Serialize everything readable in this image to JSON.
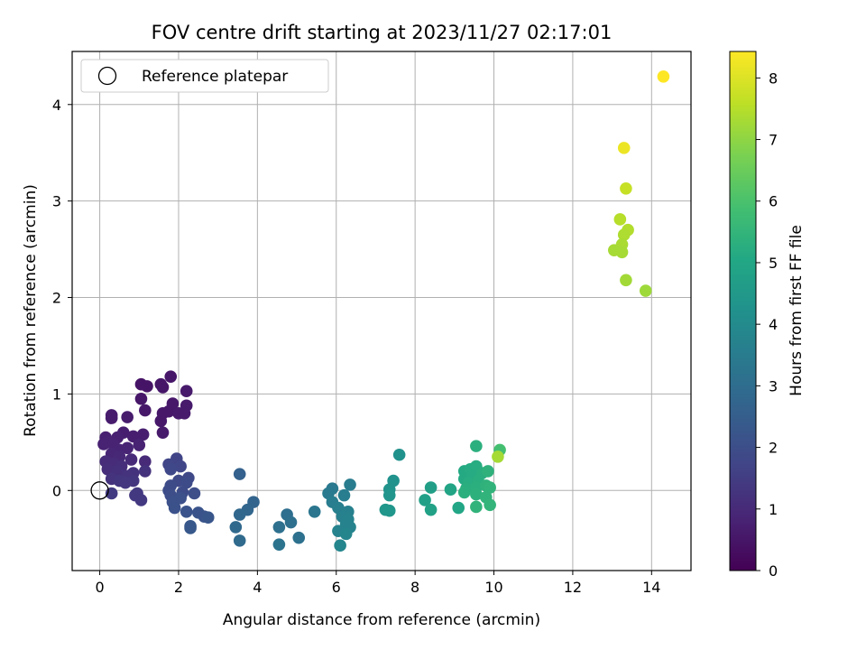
{
  "chart_data": {
    "type": "scatter",
    "title": "FOV centre drift starting at 2023/11/27 02:17:01",
    "xlabel": "Angular distance from reference (arcmin)",
    "ylabel": "Rotation from reference (arcmin)",
    "xlim": [
      -0.7,
      15.0
    ],
    "ylim": [
      -0.83,
      4.55
    ],
    "xticks": [
      0,
      2,
      4,
      6,
      8,
      10,
      12,
      14
    ],
    "yticks": [
      0,
      1,
      2,
      3,
      4
    ],
    "grid": true,
    "legend": {
      "placement": "top-left",
      "entries": [
        "Reference platepar"
      ]
    },
    "reference_point": {
      "x": 0,
      "y": 0,
      "marker": "open-circle"
    },
    "colorbar": {
      "label": "Hours from first FF file",
      "min": 0,
      "max": 8.43,
      "ticks": [
        0,
        1,
        2,
        3,
        4,
        5,
        6,
        7,
        8
      ],
      "colormap": "viridis"
    },
    "points": [
      {
        "x": 1.8,
        "y": 1.18,
        "c": 0.5
      },
      {
        "x": 1.05,
        "y": 1.1,
        "c": 0.45
      },
      {
        "x": 1.2,
        "y": 1.08,
        "c": 0.45
      },
      {
        "x": 1.55,
        "y": 1.1,
        "c": 0.5
      },
      {
        "x": 1.6,
        "y": 1.07,
        "c": 0.5
      },
      {
        "x": 2.2,
        "y": 1.03,
        "c": 0.6
      },
      {
        "x": 1.05,
        "y": 0.95,
        "c": 0.5
      },
      {
        "x": 1.85,
        "y": 0.9,
        "c": 0.55
      },
      {
        "x": 2.2,
        "y": 0.88,
        "c": 0.6
      },
      {
        "x": 1.15,
        "y": 0.83,
        "c": 0.55
      },
      {
        "x": 1.6,
        "y": 0.8,
        "c": 0.55
      },
      {
        "x": 1.75,
        "y": 0.82,
        "c": 0.55
      },
      {
        "x": 2.0,
        "y": 0.8,
        "c": 0.6
      },
      {
        "x": 2.15,
        "y": 0.8,
        "c": 0.6
      },
      {
        "x": 1.55,
        "y": 0.72,
        "c": 0.55
      },
      {
        "x": 0.3,
        "y": 0.78,
        "c": 0.65
      },
      {
        "x": 0.3,
        "y": 0.75,
        "c": 0.65
      },
      {
        "x": 0.7,
        "y": 0.76,
        "c": 0.65
      },
      {
        "x": 1.6,
        "y": 0.6,
        "c": 0.6
      },
      {
        "x": 0.6,
        "y": 0.6,
        "c": 0.7
      },
      {
        "x": 1.1,
        "y": 0.58,
        "c": 0.7
      },
      {
        "x": 0.85,
        "y": 0.56,
        "c": 0.7
      },
      {
        "x": 0.15,
        "y": 0.55,
        "c": 0.75
      },
      {
        "x": 0.45,
        "y": 0.55,
        "c": 0.75
      },
      {
        "x": 0.2,
        "y": 0.5,
        "c": 0.8
      },
      {
        "x": 0.1,
        "y": 0.48,
        "c": 0.8
      },
      {
        "x": 0.35,
        "y": 0.48,
        "c": 0.8
      },
      {
        "x": 1.0,
        "y": 0.47,
        "c": 0.8
      },
      {
        "x": 0.7,
        "y": 0.44,
        "c": 0.85
      },
      {
        "x": 0.5,
        "y": 0.42,
        "c": 0.85
      },
      {
        "x": 0.3,
        "y": 0.38,
        "c": 0.9
      },
      {
        "x": 0.5,
        "y": 0.35,
        "c": 0.95
      },
      {
        "x": 0.8,
        "y": 0.32,
        "c": 1.0
      },
      {
        "x": 1.15,
        "y": 0.3,
        "c": 1.0
      },
      {
        "x": 0.15,
        "y": 0.3,
        "c": 1.05
      },
      {
        "x": 0.35,
        "y": 0.28,
        "c": 1.05
      },
      {
        "x": 0.55,
        "y": 0.25,
        "c": 1.1
      },
      {
        "x": 0.2,
        "y": 0.22,
        "c": 1.1
      },
      {
        "x": 0.45,
        "y": 0.2,
        "c": 1.15
      },
      {
        "x": 0.85,
        "y": 0.18,
        "c": 1.2
      },
      {
        "x": 1.15,
        "y": 0.2,
        "c": 1.2
      },
      {
        "x": 0.7,
        "y": 0.15,
        "c": 1.25
      },
      {
        "x": 0.3,
        "y": 0.12,
        "c": 1.25
      },
      {
        "x": 0.5,
        "y": 0.1,
        "c": 1.3
      },
      {
        "x": 0.85,
        "y": 0.1,
        "c": 1.3
      },
      {
        "x": 0.65,
        "y": 0.08,
        "c": 1.35
      },
      {
        "x": 0.9,
        "y": -0.05,
        "c": 1.4
      },
      {
        "x": 0.95,
        "y": -0.03,
        "c": 1.4
      },
      {
        "x": 1.05,
        "y": -0.1,
        "c": 1.4
      },
      {
        "x": 0.3,
        "y": -0.03,
        "c": 1.45
      },
      {
        "x": 1.95,
        "y": 0.33,
        "c": 1.7
      },
      {
        "x": 1.75,
        "y": 0.27,
        "c": 1.75
      },
      {
        "x": 2.05,
        "y": 0.25,
        "c": 1.75
      },
      {
        "x": 1.8,
        "y": 0.22,
        "c": 1.8
      },
      {
        "x": 2.25,
        "y": 0.13,
        "c": 1.85
      },
      {
        "x": 2.0,
        "y": 0.1,
        "c": 1.85
      },
      {
        "x": 2.2,
        "y": 0.08,
        "c": 1.9
      },
      {
        "x": 1.8,
        "y": 0.05,
        "c": 1.9
      },
      {
        "x": 1.75,
        "y": 0.0,
        "c": 1.95
      },
      {
        "x": 2.1,
        "y": -0.02,
        "c": 1.95
      },
      {
        "x": 2.4,
        "y": -0.03,
        "c": 2.0
      },
      {
        "x": 1.8,
        "y": -0.05,
        "c": 2.0
      },
      {
        "x": 2.05,
        "y": -0.08,
        "c": 2.05
      },
      {
        "x": 1.85,
        "y": -0.12,
        "c": 2.05
      },
      {
        "x": 1.9,
        "y": -0.18,
        "c": 2.1
      },
      {
        "x": 2.2,
        "y": -0.22,
        "c": 2.15
      },
      {
        "x": 2.5,
        "y": -0.23,
        "c": 2.2
      },
      {
        "x": 2.65,
        "y": -0.27,
        "c": 2.2
      },
      {
        "x": 2.75,
        "y": -0.28,
        "c": 2.25
      },
      {
        "x": 2.3,
        "y": -0.37,
        "c": 2.3
      },
      {
        "x": 2.3,
        "y": -0.39,
        "c": 2.3
      },
      {
        "x": 3.55,
        "y": 0.17,
        "c": 2.6
      },
      {
        "x": 3.9,
        "y": -0.12,
        "c": 2.7
      },
      {
        "x": 3.75,
        "y": -0.2,
        "c": 2.75
      },
      {
        "x": 3.55,
        "y": -0.25,
        "c": 2.8
      },
      {
        "x": 3.45,
        "y": -0.38,
        "c": 2.85
      },
      {
        "x": 3.55,
        "y": -0.52,
        "c": 2.9
      },
      {
        "x": 4.75,
        "y": -0.25,
        "c": 3.05
      },
      {
        "x": 4.85,
        "y": -0.33,
        "c": 3.1
      },
      {
        "x": 4.55,
        "y": -0.38,
        "c": 3.1
      },
      {
        "x": 5.05,
        "y": -0.49,
        "c": 3.15
      },
      {
        "x": 4.55,
        "y": -0.56,
        "c": 3.2
      },
      {
        "x": 5.45,
        "y": -0.22,
        "c": 3.3
      },
      {
        "x": 5.9,
        "y": 0.02,
        "c": 3.4
      },
      {
        "x": 5.8,
        "y": -0.03,
        "c": 3.45
      },
      {
        "x": 6.35,
        "y": 0.06,
        "c": 3.5
      },
      {
        "x": 6.2,
        "y": -0.05,
        "c": 3.55
      },
      {
        "x": 5.9,
        "y": -0.12,
        "c": 3.55
      },
      {
        "x": 6.05,
        "y": -0.18,
        "c": 3.6
      },
      {
        "x": 6.3,
        "y": -0.22,
        "c": 3.65
      },
      {
        "x": 6.15,
        "y": -0.27,
        "c": 3.65
      },
      {
        "x": 6.3,
        "y": -0.3,
        "c": 3.7
      },
      {
        "x": 6.25,
        "y": -0.35,
        "c": 3.7
      },
      {
        "x": 6.35,
        "y": -0.38,
        "c": 3.75
      },
      {
        "x": 6.05,
        "y": -0.42,
        "c": 3.75
      },
      {
        "x": 6.25,
        "y": -0.45,
        "c": 3.8
      },
      {
        "x": 6.1,
        "y": -0.57,
        "c": 3.85
      },
      {
        "x": 7.6,
        "y": 0.37,
        "c": 4.2
      },
      {
        "x": 7.45,
        "y": 0.1,
        "c": 4.25
      },
      {
        "x": 7.35,
        "y": 0.01,
        "c": 4.3
      },
      {
        "x": 7.35,
        "y": -0.05,
        "c": 4.35
      },
      {
        "x": 7.25,
        "y": -0.2,
        "c": 4.4
      },
      {
        "x": 7.35,
        "y": -0.21,
        "c": 4.4
      },
      {
        "x": 8.4,
        "y": 0.03,
        "c": 4.7
      },
      {
        "x": 8.25,
        "y": -0.1,
        "c": 4.75
      },
      {
        "x": 8.4,
        "y": -0.2,
        "c": 4.8
      },
      {
        "x": 8.9,
        "y": 0.01,
        "c": 4.9
      },
      {
        "x": 9.1,
        "y": -0.18,
        "c": 5.0
      },
      {
        "x": 9.55,
        "y": 0.46,
        "c": 5.3
      },
      {
        "x": 9.25,
        "y": 0.2,
        "c": 5.1
      },
      {
        "x": 9.4,
        "y": 0.22,
        "c": 5.15
      },
      {
        "x": 9.55,
        "y": 0.25,
        "c": 5.2
      },
      {
        "x": 9.25,
        "y": 0.12,
        "c": 5.1
      },
      {
        "x": 9.45,
        "y": 0.15,
        "c": 5.15
      },
      {
        "x": 9.7,
        "y": 0.18,
        "c": 5.25
      },
      {
        "x": 9.35,
        "y": 0.08,
        "c": 5.2
      },
      {
        "x": 9.6,
        "y": 0.1,
        "c": 5.25
      },
      {
        "x": 9.85,
        "y": 0.2,
        "c": 5.4
      },
      {
        "x": 9.3,
        "y": 0.02,
        "c": 5.25
      },
      {
        "x": 9.55,
        "y": 0.03,
        "c": 5.3
      },
      {
        "x": 9.8,
        "y": 0.05,
        "c": 5.4
      },
      {
        "x": 9.25,
        "y": -0.02,
        "c": 5.3
      },
      {
        "x": 9.55,
        "y": -0.04,
        "c": 5.35
      },
      {
        "x": 9.9,
        "y": 0.03,
        "c": 5.45
      },
      {
        "x": 9.8,
        "y": -0.07,
        "c": 5.45
      },
      {
        "x": 9.55,
        "y": -0.17,
        "c": 5.45
      },
      {
        "x": 9.9,
        "y": -0.15,
        "c": 5.5
      },
      {
        "x": 10.15,
        "y": 0.42,
        "c": 5.9
      },
      {
        "x": 10.1,
        "y": 0.35,
        "c": 7.3
      },
      {
        "x": 14.3,
        "y": 4.29,
        "c": 8.43
      },
      {
        "x": 13.3,
        "y": 3.55,
        "c": 8.2
      },
      {
        "x": 13.35,
        "y": 3.13,
        "c": 7.7
      },
      {
        "x": 13.2,
        "y": 2.81,
        "c": 7.5
      },
      {
        "x": 13.4,
        "y": 2.7,
        "c": 7.45
      },
      {
        "x": 13.3,
        "y": 2.65,
        "c": 7.4
      },
      {
        "x": 13.25,
        "y": 2.55,
        "c": 7.35
      },
      {
        "x": 13.05,
        "y": 2.49,
        "c": 7.3
      },
      {
        "x": 13.25,
        "y": 2.47,
        "c": 7.3
      },
      {
        "x": 13.35,
        "y": 2.18,
        "c": 7.25
      },
      {
        "x": 13.85,
        "y": 2.07,
        "c": 7.2
      }
    ]
  }
}
